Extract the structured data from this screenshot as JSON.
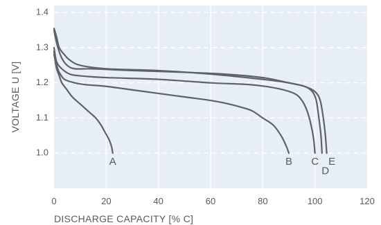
{
  "chart_data": {
    "type": "line",
    "xlabel": "DISCHARGE CAPACITY [% C]",
    "ylabel": "VOLTAGE U [V]",
    "xlim": [
      0,
      120
    ],
    "ylim": [
      0.9,
      1.42
    ],
    "xticks": [
      {
        "value": 0,
        "label": "0"
      },
      {
        "value": 20,
        "label": "20"
      },
      {
        "value": 40,
        "label": "40"
      },
      {
        "value": 60,
        "label": "60"
      },
      {
        "value": 80,
        "label": "80"
      },
      {
        "value": 100,
        "label": "100"
      },
      {
        "value": 120,
        "label": "120"
      }
    ],
    "yticks": [
      {
        "value": 1.0,
        "label": "1.0"
      },
      {
        "value": 1.1,
        "label": "1.1"
      },
      {
        "value": 1.2,
        "label": "1.2"
      },
      {
        "value": 1.3,
        "label": "1.3"
      },
      {
        "value": 1.4,
        "label": "1.4"
      }
    ],
    "grid": true,
    "colors": {
      "plot_bg": "#e8eef6",
      "grid": "#ffffff",
      "line": "#5d6168",
      "text": "#555a61"
    },
    "series": [
      {
        "name": "A",
        "points": [
          [
            0,
            1.29
          ],
          [
            0.5,
            1.26
          ],
          [
            1,
            1.24
          ],
          [
            2,
            1.22
          ],
          [
            3,
            1.2
          ],
          [
            5,
            1.18
          ],
          [
            7,
            1.16
          ],
          [
            10,
            1.14
          ],
          [
            13,
            1.12
          ],
          [
            16,
            1.1
          ],
          [
            18,
            1.08
          ],
          [
            19.5,
            1.06
          ],
          [
            21,
            1.04
          ],
          [
            22,
            1.02
          ],
          [
            22.5,
            1.0
          ]
        ]
      },
      {
        "name": "B",
        "points": [
          [
            0,
            1.28
          ],
          [
            1,
            1.25
          ],
          [
            2,
            1.23
          ],
          [
            4,
            1.21
          ],
          [
            8,
            1.2
          ],
          [
            12,
            1.195
          ],
          [
            20,
            1.19
          ],
          [
            30,
            1.18
          ],
          [
            40,
            1.17
          ],
          [
            50,
            1.16
          ],
          [
            60,
            1.15
          ],
          [
            67,
            1.14
          ],
          [
            72,
            1.13
          ],
          [
            76,
            1.12
          ],
          [
            80,
            1.1
          ],
          [
            84,
            1.08
          ],
          [
            87,
            1.05
          ],
          [
            89,
            1.02
          ],
          [
            90,
            1.0
          ]
        ]
      },
      {
        "name": "C",
        "points": [
          [
            0,
            1.3
          ],
          [
            1,
            1.26
          ],
          [
            3,
            1.24
          ],
          [
            6,
            1.225
          ],
          [
            10,
            1.22
          ],
          [
            20,
            1.215
          ],
          [
            40,
            1.21
          ],
          [
            60,
            1.2
          ],
          [
            75,
            1.195
          ],
          [
            85,
            1.185
          ],
          [
            92,
            1.17
          ],
          [
            95,
            1.15
          ],
          [
            97,
            1.12
          ],
          [
            98.5,
            1.08
          ],
          [
            99.5,
            1.04
          ],
          [
            100,
            1.0
          ]
        ]
      },
      {
        "name": "D",
        "points": [
          [
            0,
            1.35
          ],
          [
            0.5,
            1.33
          ],
          [
            1.5,
            1.3
          ],
          [
            3,
            1.27
          ],
          [
            5,
            1.25
          ],
          [
            8,
            1.24
          ],
          [
            15,
            1.24
          ],
          [
            30,
            1.235
          ],
          [
            50,
            1.23
          ],
          [
            65,
            1.225
          ],
          [
            80,
            1.215
          ],
          [
            90,
            1.2
          ],
          [
            96,
            1.19
          ],
          [
            99,
            1.175
          ],
          [
            100.5,
            1.15
          ],
          [
            101.5,
            1.1
          ],
          [
            102.3,
            1.05
          ],
          [
            102.7,
            1.0
          ]
        ]
      },
      {
        "name": "E",
        "points": [
          [
            0,
            1.355
          ],
          [
            1,
            1.33
          ],
          [
            2,
            1.3
          ],
          [
            4,
            1.28
          ],
          [
            6,
            1.265
          ],
          [
            10,
            1.25
          ],
          [
            20,
            1.24
          ],
          [
            40,
            1.235
          ],
          [
            60,
            1.225
          ],
          [
            80,
            1.21
          ],
          [
            90,
            1.2
          ],
          [
            96,
            1.19
          ],
          [
            100,
            1.175
          ],
          [
            102,
            1.15
          ],
          [
            103.2,
            1.1
          ],
          [
            104,
            1.05
          ],
          [
            104.5,
            1.0
          ]
        ]
      }
    ],
    "series_labels": [
      {
        "text": "A",
        "x": 22.5,
        "y": 0.975
      },
      {
        "text": "B",
        "x": 90,
        "y": 0.975
      },
      {
        "text": "C",
        "x": 100,
        "y": 0.975
      },
      {
        "text": "D",
        "x": 104,
        "y": 0.948
      },
      {
        "text": "E",
        "x": 106.5,
        "y": 0.975
      }
    ]
  }
}
